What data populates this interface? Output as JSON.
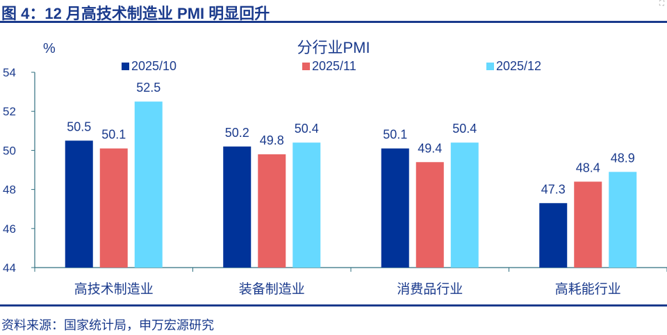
{
  "title": "图 4：12 月高技术制造业 PMI 明显回升",
  "source": "资料来源：国家统计局，申万宏源研究",
  "corner_icon": "expand-icon",
  "chart_data": {
    "type": "bar",
    "title": "分行业PMI",
    "ylabel": "%",
    "xlabel": "",
    "ylim": [
      44,
      54
    ],
    "yticks": [
      44,
      46,
      48,
      50,
      52,
      54
    ],
    "grid": false,
    "legend_placement": "top",
    "categories": [
      "高技术制造业",
      "装备制造业",
      "消费品行业",
      "高耗能行业"
    ],
    "series": [
      {
        "name": "2025/10",
        "color": "#003399",
        "values": [
          50.5,
          50.2,
          50.1,
          47.3
        ]
      },
      {
        "name": "2025/11",
        "color": "#E86262",
        "values": [
          50.1,
          49.8,
          49.4,
          48.4
        ]
      },
      {
        "name": "2025/12",
        "color": "#66D9FF",
        "values": [
          52.5,
          50.4,
          50.4,
          48.9
        ]
      }
    ]
  }
}
